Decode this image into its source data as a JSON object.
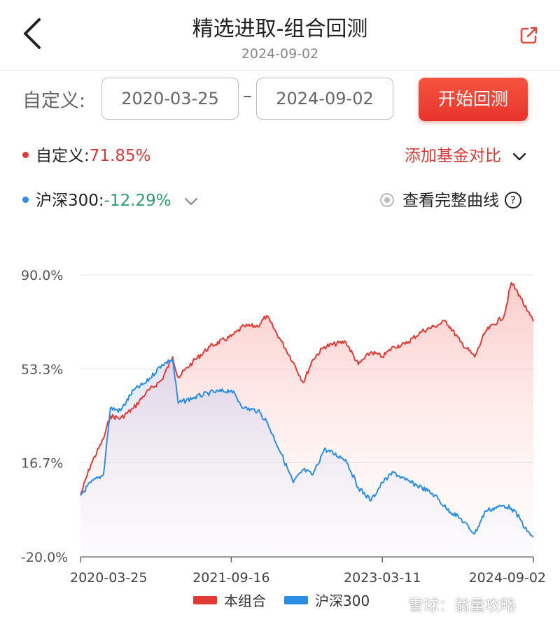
{
  "header": {
    "title": "精选进取-组合回测",
    "date": "2024-09-02",
    "back_icon": "chevron-left-icon",
    "share_icon": "share-icon"
  },
  "range": {
    "label": "自定义:",
    "start": "2020-03-25",
    "end": "2024-09-02",
    "separator": "–",
    "button": "开始回测"
  },
  "summary": {
    "portfolio": {
      "name": "自定义",
      "separator": ":",
      "value": "71.85%",
      "color": "#d93a36"
    },
    "benchmark": {
      "name": "沪深300",
      "separator": ":",
      "value": "-12.29%",
      "color": "#2a9d6b"
    },
    "add_fund": "添加基金对比",
    "view_full": "查看完整曲线",
    "help": "?"
  },
  "chart_data": {
    "type": "line",
    "y_ticks": [
      "90.0%",
      "53.3%",
      "16.7%",
      "-20.0%"
    ],
    "y_tick_values": [
      90.0,
      53.3,
      16.7,
      -20.0
    ],
    "ylim": [
      -20.0,
      90.0
    ],
    "x_ticks": [
      "2020-03-25",
      "2021-09-16",
      "2023-03-11",
      "2024-09-02"
    ],
    "x_range": [
      "2020-03-25",
      "2024-09-02"
    ],
    "grid": true,
    "legend_position": "bottom",
    "x": [
      "2020-03-25",
      "2020-05-01",
      "2020-06-15",
      "2020-07-10",
      "2020-08-15",
      "2020-10-01",
      "2020-11-15",
      "2021-01-10",
      "2021-02-18",
      "2021-03-10",
      "2021-05-01",
      "2021-07-01",
      "2021-09-16",
      "2021-11-01",
      "2021-12-20",
      "2022-01-20",
      "2022-03-15",
      "2022-04-26",
      "2022-06-01",
      "2022-07-05",
      "2022-08-15",
      "2022-10-31",
      "2022-12-15",
      "2023-01-30",
      "2023-03-11",
      "2023-04-20",
      "2023-06-01",
      "2023-07-31",
      "2023-09-15",
      "2023-10-25",
      "2023-12-15",
      "2024-02-05",
      "2024-03-15",
      "2024-05-20",
      "2024-06-15",
      "2024-07-15",
      "2024-08-10",
      "2024-09-02"
    ],
    "series": [
      {
        "name": "本组合",
        "color": "#e23a35",
        "values": [
          4,
          16,
          26,
          35,
          34,
          38,
          44,
          49,
          58,
          50,
          56,
          62,
          66,
          70,
          70,
          74,
          64,
          56,
          48,
          57,
          62,
          64,
          55,
          60,
          58,
          62,
          63,
          68,
          70,
          72,
          64,
          58,
          68,
          74,
          87,
          82,
          76,
          71.85
        ]
      },
      {
        "name": "沪深300",
        "color": "#2a8ee3",
        "values": [
          4,
          9,
          12,
          38,
          37,
          45,
          48,
          55,
          57,
          40,
          42,
          44,
          45,
          38,
          37,
          33,
          20,
          9,
          14,
          12,
          22,
          18,
          7,
          2,
          9,
          13,
          10,
          7,
          4,
          -1,
          -5,
          -11,
          -2,
          0,
          -1,
          -5,
          -10,
          -12.29
        ]
      }
    ]
  },
  "watermark": "雪球：翁量攻略"
}
